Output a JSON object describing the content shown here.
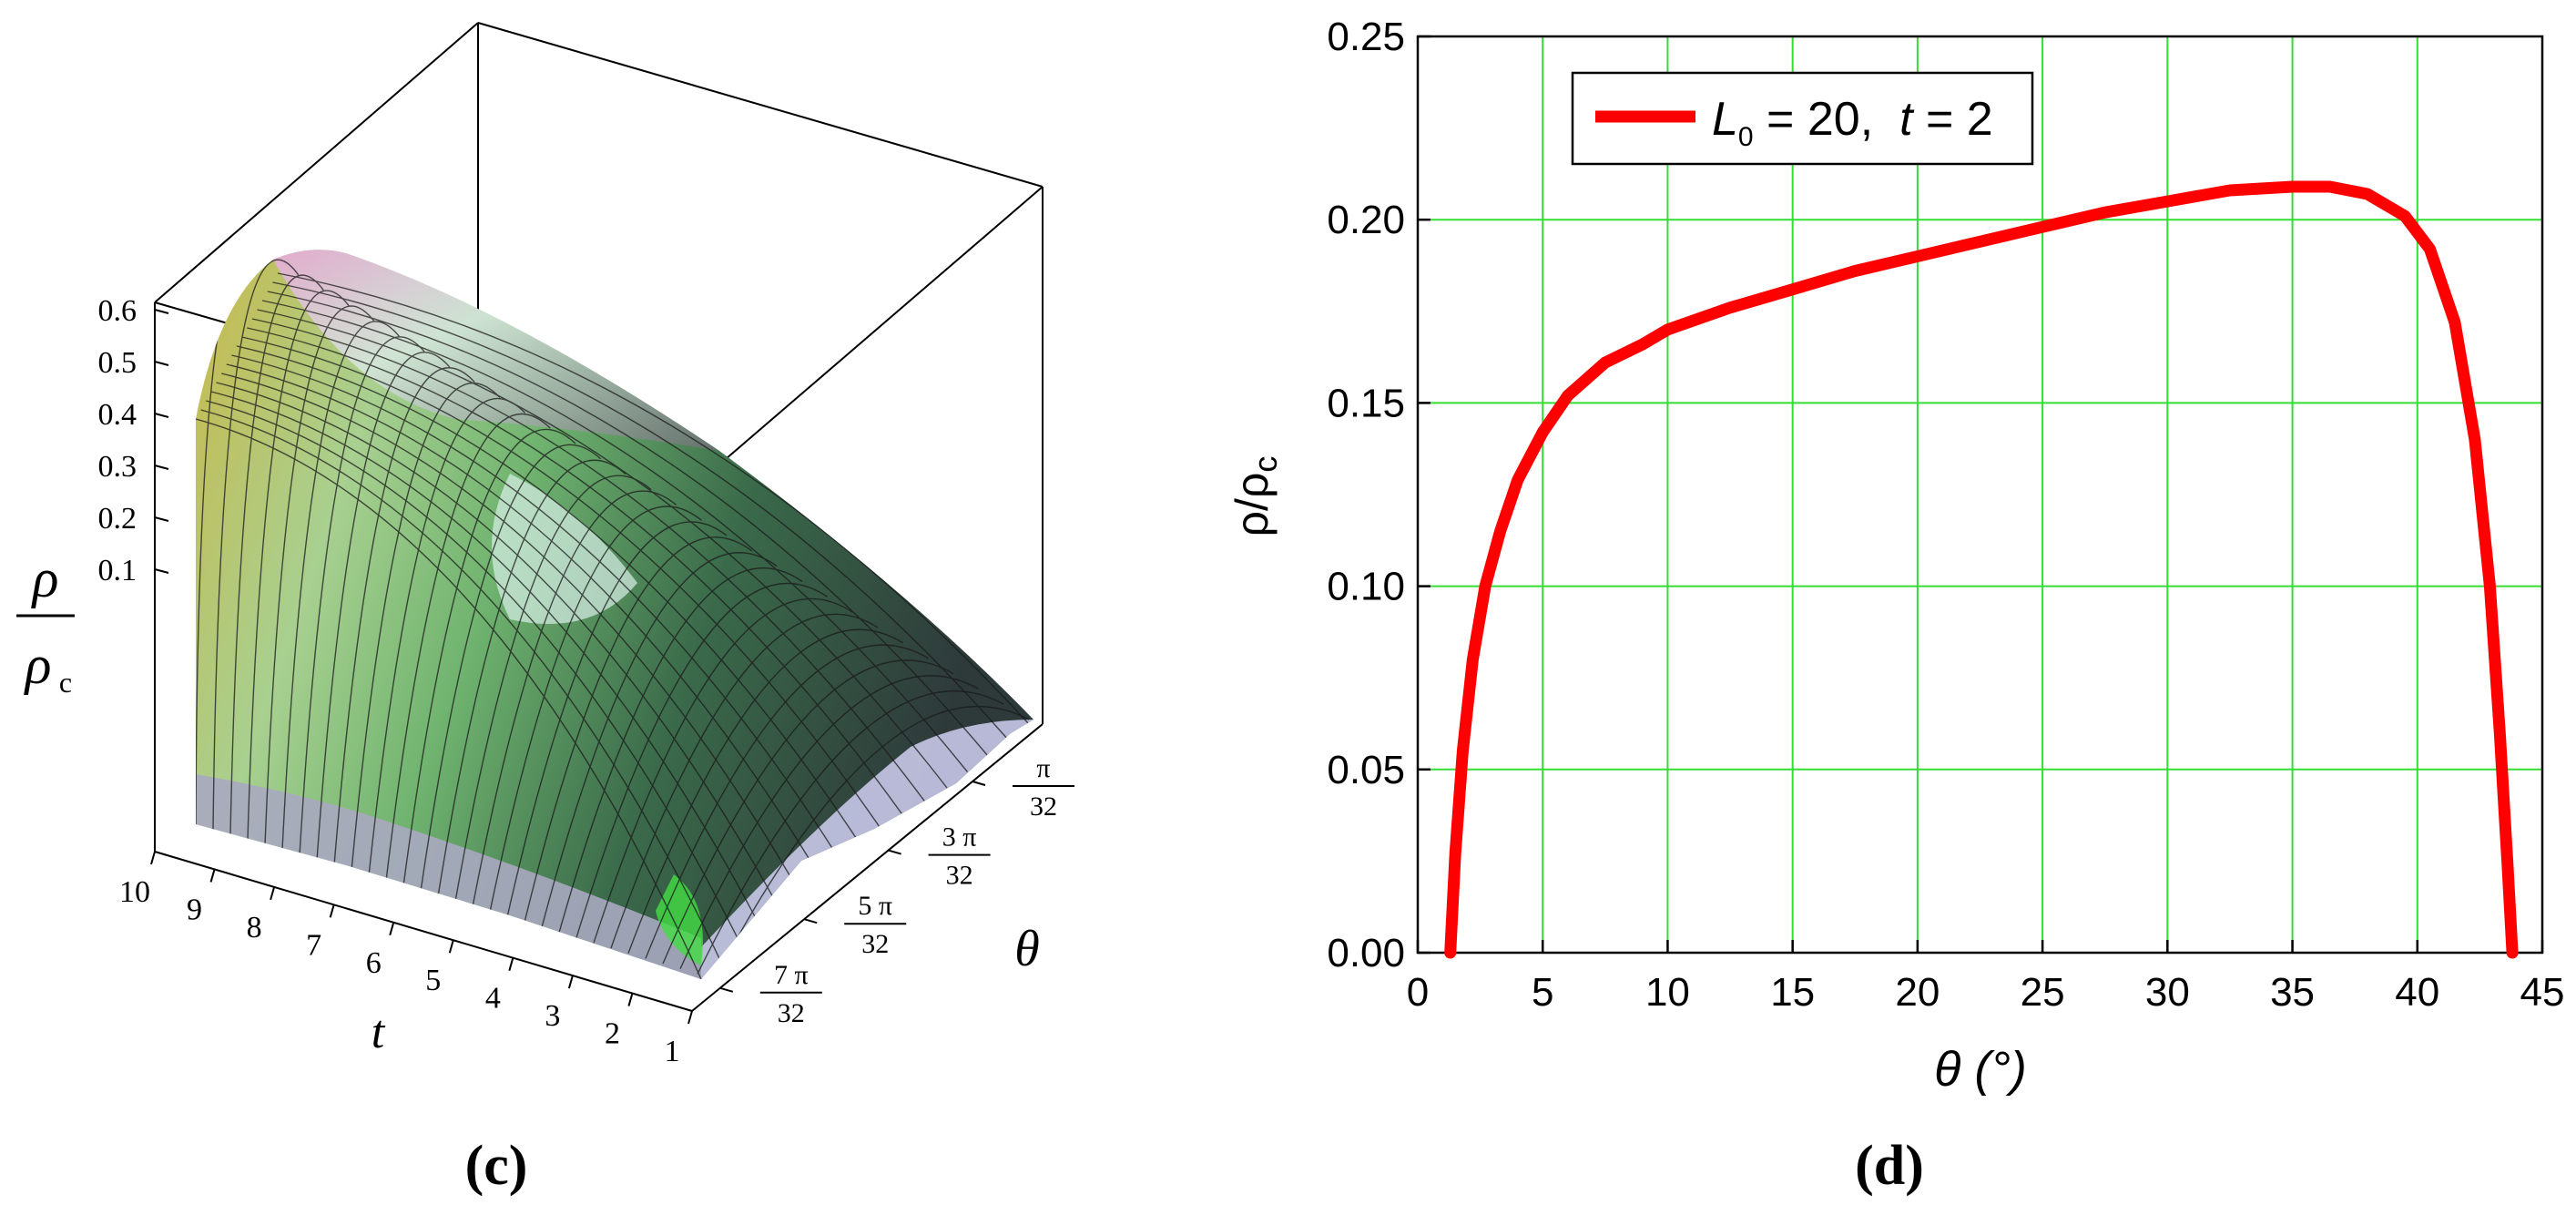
{
  "chart_data": [
    {
      "panel_label": "(c)",
      "type": "surface3d",
      "zlabel_num": "ρ",
      "zlabel_den": "ρ",
      "zlabel_den_sub": "c",
      "xlabel": "t",
      "ylabel": "θ",
      "z_ticks": [
        "0.1",
        "0.2",
        "0.3",
        "0.4",
        "0.5",
        "0.6"
      ],
      "t_ticks": [
        "10",
        "9",
        "8",
        "7",
        "6",
        "5",
        "4",
        "3",
        "2",
        "1"
      ],
      "theta_ticks": [
        {
          "num": "π",
          "den": "32"
        },
        {
          "num": "3 π",
          "den": "32"
        },
        {
          "num": "5 π",
          "den": "32"
        },
        {
          "num": "7 π",
          "den": "32"
        }
      ]
    },
    {
      "panel_label": "(d)",
      "type": "line",
      "xlabel": "θ (°)",
      "ylabel": "ρ/ρ",
      "ylabel_sub": "c",
      "xlim": [
        0,
        45
      ],
      "ylim": [
        0,
        0.25
      ],
      "xticks": [
        0,
        5,
        10,
        15,
        20,
        25,
        30,
        35,
        40,
        45
      ],
      "yticks": [
        "0.00",
        "0.05",
        "0.10",
        "0.15",
        "0.20",
        "0.25"
      ],
      "grid": true,
      "grid_color": "#33dd33",
      "legend_position": "top-left",
      "series": [
        {
          "name": "L0 = 20, t = 2",
          "color": "#ff0000",
          "x": [
            1.3,
            1.5,
            1.8,
            2.2,
            2.7,
            3.3,
            4.0,
            5.0,
            6.0,
            7.5,
            9.0,
            10.0,
            12.5,
            15.0,
            17.5,
            20.0,
            22.5,
            25.0,
            27.5,
            30.0,
            32.5,
            35.0,
            36.5,
            38.0,
            39.5,
            40.5,
            41.5,
            42.3,
            42.9,
            43.3,
            43.6,
            43.8
          ],
          "y": [
            0.0,
            0.027,
            0.055,
            0.08,
            0.1,
            0.115,
            0.129,
            0.142,
            0.152,
            0.161,
            0.166,
            0.17,
            0.176,
            0.181,
            0.186,
            0.19,
            0.194,
            0.198,
            0.202,
            0.205,
            0.208,
            0.209,
            0.209,
            0.207,
            0.201,
            0.192,
            0.172,
            0.14,
            0.1,
            0.06,
            0.025,
            0.0
          ]
        }
      ]
    }
  ],
  "legend": {
    "main": "L",
    "sub": "0",
    "rest": " = 20,  ",
    "t": "t",
    "t_rest": " = 2"
  },
  "colors": {
    "curve": "#ff0000",
    "grid": "#33dd33",
    "axis": "#000000"
  }
}
